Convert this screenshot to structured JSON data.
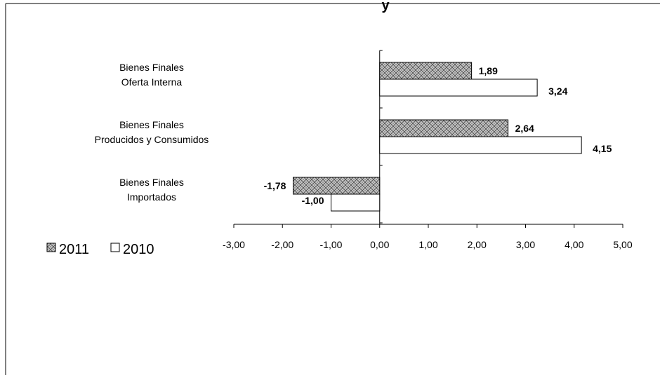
{
  "chart_data": {
    "type": "bar",
    "orientation": "horizontal",
    "title_fragment": "y",
    "categories": [
      [
        "Bienes Finales",
        "Oferta Interna"
      ],
      [
        "Bienes Finales",
        "Producidos y Consumidos"
      ],
      [
        "Bienes Finales",
        "Importados"
      ]
    ],
    "series": [
      {
        "name": "2011",
        "values": [
          1.89,
          2.64,
          -1.78
        ],
        "labels": [
          "1,89",
          "2,64",
          "-1,78"
        ],
        "fill": "hatch"
      },
      {
        "name": "2010",
        "values": [
          3.24,
          4.15,
          -1.0
        ],
        "labels": [
          "3,24",
          "4,15",
          "-1,00"
        ],
        "fill": "white"
      }
    ],
    "xlim": [
      -3,
      5
    ],
    "x_ticks": [
      -3,
      -2,
      -1,
      0,
      1,
      2,
      3,
      4,
      5
    ],
    "x_tick_labels": [
      "-3,00",
      "-2,00",
      "-1,00",
      "0,00",
      "1,00",
      "2,00",
      "3,00",
      "4,00",
      "5,00"
    ],
    "grid": false,
    "legend_position": "bottom-left",
    "colors": {
      "stroke": "#000000",
      "hatch_fill": "#c8c8c8",
      "plain_fill": "#ffffff"
    }
  }
}
